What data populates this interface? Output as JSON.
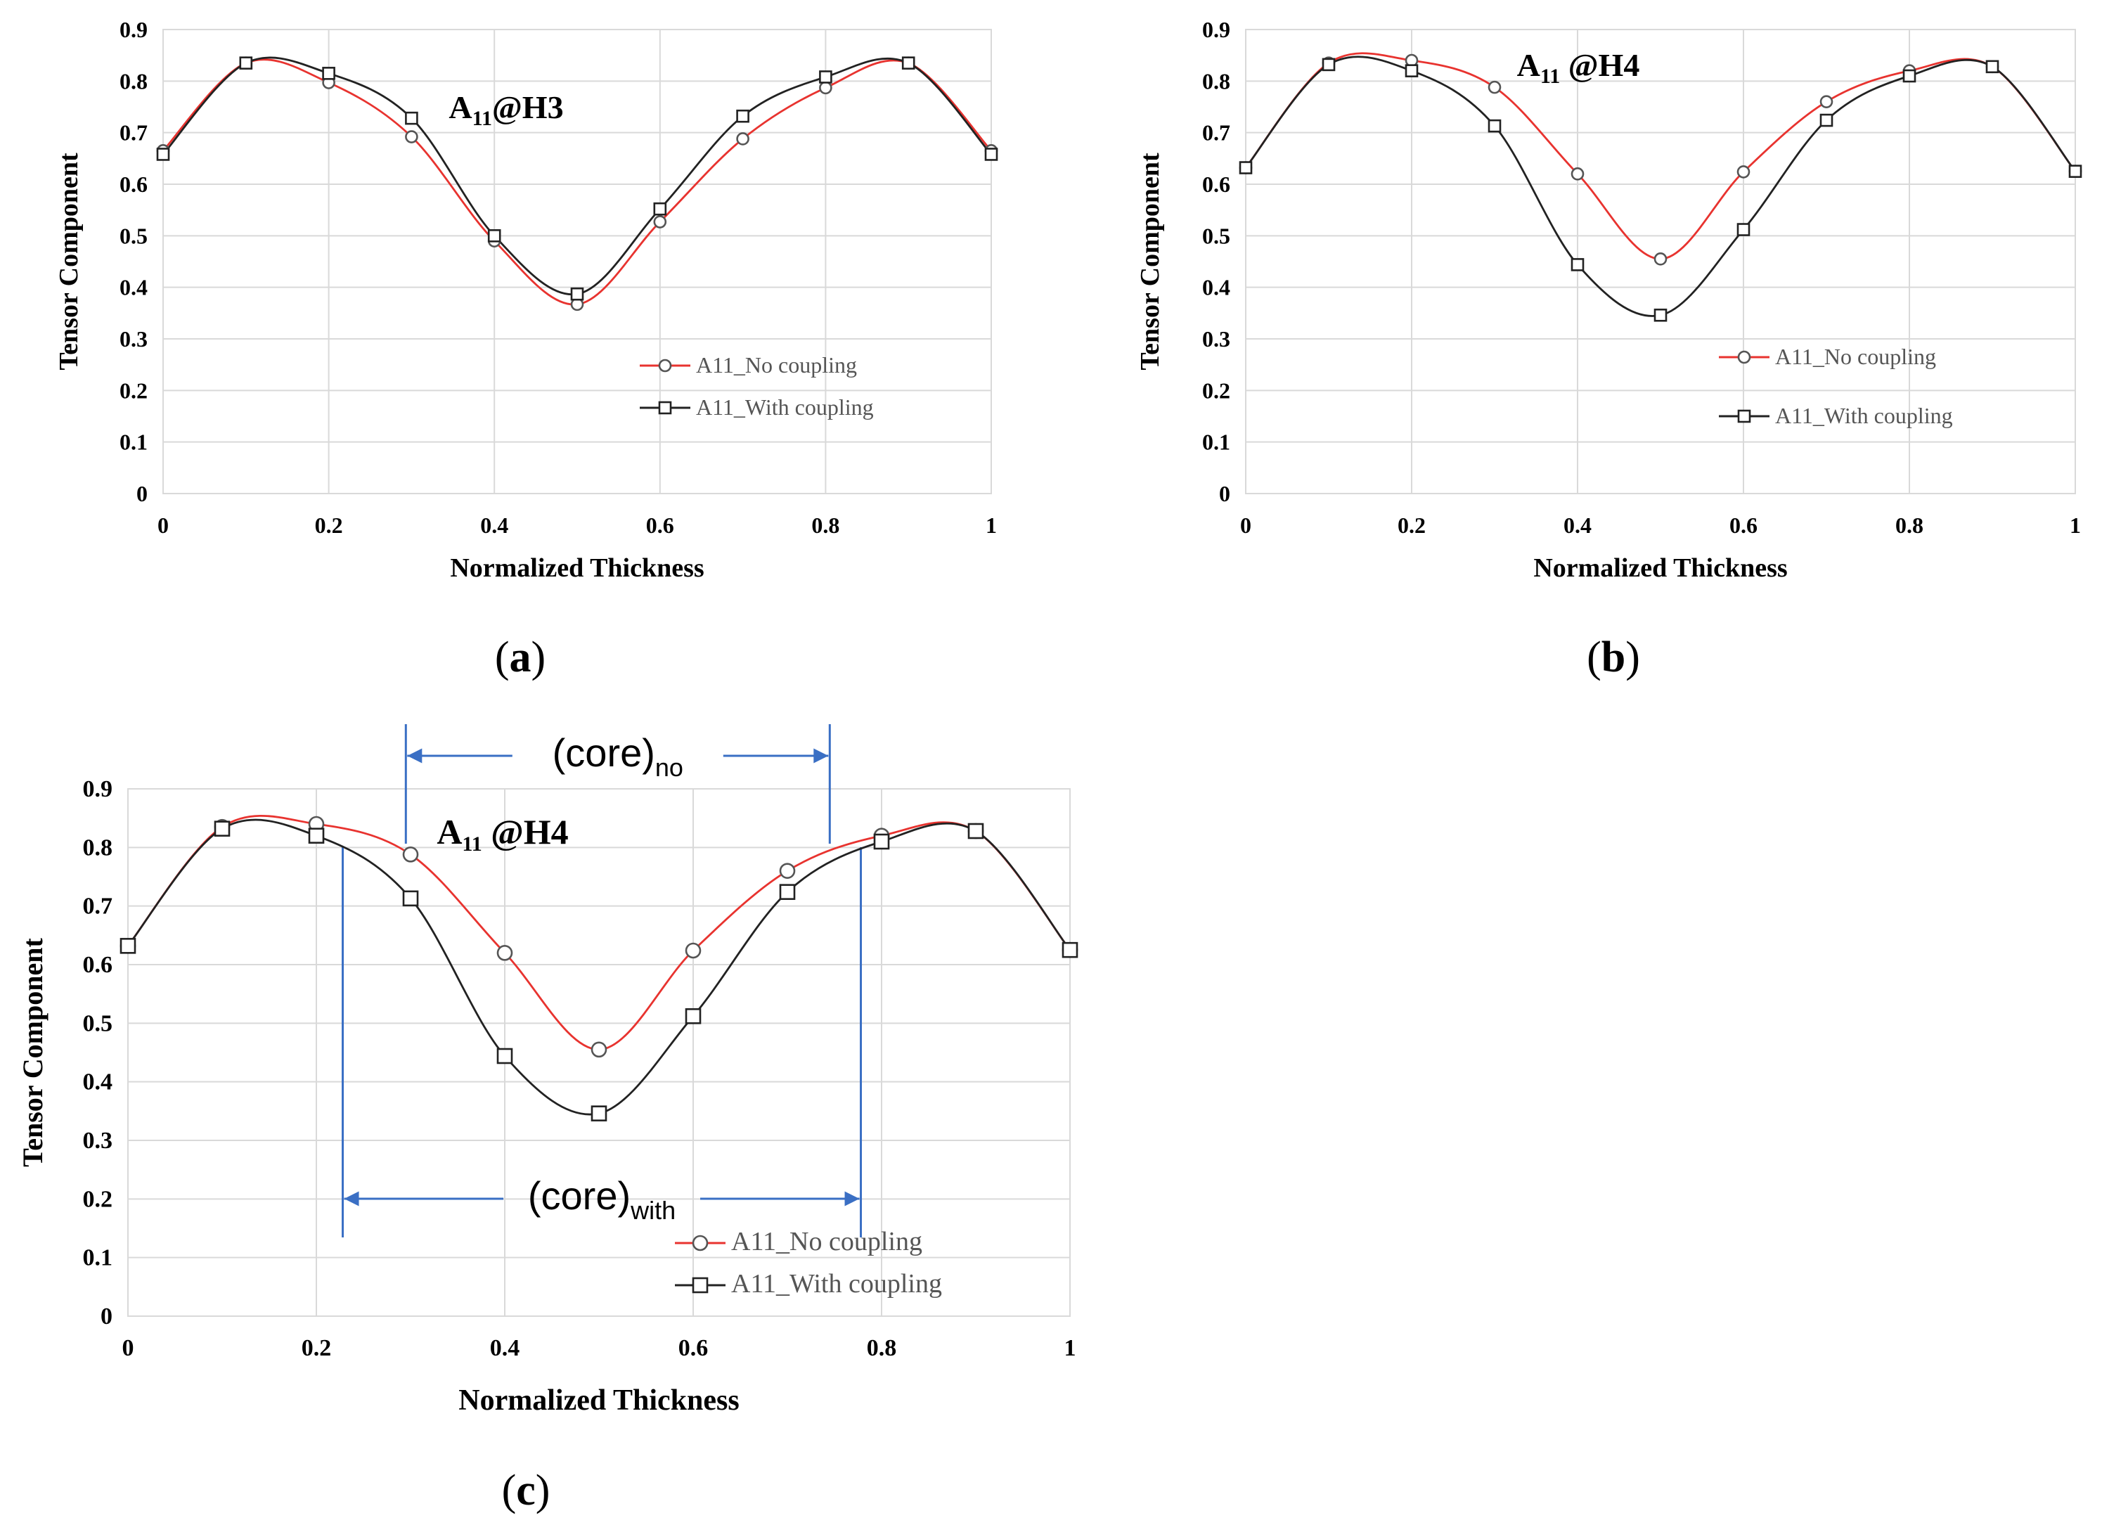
{
  "colors": {
    "no_coupling": "#e8332f",
    "with_coupling": "#222222",
    "grid": "#d9d9d9",
    "annotation": "#3a6fc4"
  },
  "chart_data": [
    {
      "id": "a",
      "type": "line",
      "panel_label": "a",
      "title": {
        "main": "A",
        "sub": "11",
        "rest": "@H3"
      },
      "xlabel": "Normalized  Thickness",
      "ylabel": "Tensor Component",
      "xlim": [
        0,
        1
      ],
      "ylim": [
        0,
        0.9
      ],
      "xticks": [
        "0",
        "0.2",
        "0.4",
        "0.6",
        "0.8",
        "1"
      ],
      "yticks": [
        "0",
        "0.1",
        "0.2",
        "0.3",
        "0.4",
        "0.5",
        "0.6",
        "0.7",
        "0.8",
        "0.9"
      ],
      "x": [
        0,
        0.1,
        0.2,
        0.3,
        0.4,
        0.5,
        0.6,
        0.7,
        0.8,
        0.9,
        1
      ],
      "series": [
        {
          "name": "A11_No coupling",
          "marker": "circle",
          "values": [
            0.665,
            0.835,
            0.797,
            0.692,
            0.49,
            0.367,
            0.527,
            0.688,
            0.787,
            0.835,
            0.665
          ]
        },
        {
          "name": "A11_With coupling",
          "marker": "square",
          "values": [
            0.658,
            0.835,
            0.815,
            0.728,
            0.5,
            0.387,
            0.552,
            0.732,
            0.808,
            0.835,
            0.658
          ]
        }
      ]
    },
    {
      "id": "b",
      "type": "line",
      "panel_label": "b",
      "title": {
        "main": "A",
        "sub": "11",
        "rest": " @H4"
      },
      "xlabel": "Normalized  Thickness",
      "ylabel": "Tensor Component",
      "xlim": [
        0,
        1
      ],
      "ylim": [
        0,
        0.9
      ],
      "xticks": [
        "0",
        "0.2",
        "0.4",
        "0.6",
        "0.8",
        "1"
      ],
      "yticks": [
        "0",
        "0.1",
        "0.2",
        "0.3",
        "0.4",
        "0.5",
        "0.6",
        "0.7",
        "0.8",
        "0.9"
      ],
      "x": [
        0,
        0.1,
        0.2,
        0.3,
        0.4,
        0.5,
        0.6,
        0.7,
        0.8,
        0.9,
        1
      ],
      "series": [
        {
          "name": "A11_No coupling",
          "marker": "circle",
          "values": [
            0.632,
            0.835,
            0.84,
            0.788,
            0.62,
            0.455,
            0.624,
            0.76,
            0.82,
            0.828,
            0.625
          ]
        },
        {
          "name": "A11_With coupling",
          "marker": "square",
          "values": [
            0.632,
            0.832,
            0.82,
            0.713,
            0.444,
            0.346,
            0.512,
            0.724,
            0.81,
            0.828,
            0.625
          ]
        }
      ]
    },
    {
      "id": "c",
      "type": "line",
      "panel_label": "c",
      "title": {
        "main": "A",
        "sub": "11",
        "rest": " @H4"
      },
      "xlabel": "Normalized  Thickness",
      "ylabel": "Tensor Component",
      "xlim": [
        0,
        1
      ],
      "ylim": [
        0,
        0.9
      ],
      "xticks": [
        "0",
        "0.2",
        "0.4",
        "0.6",
        "0.8",
        "1"
      ],
      "yticks": [
        "0",
        "0.1",
        "0.2",
        "0.3",
        "0.4",
        "0.5",
        "0.6",
        "0.7",
        "0.8",
        "0.9"
      ],
      "x": [
        0,
        0.1,
        0.2,
        0.3,
        0.4,
        0.5,
        0.6,
        0.7,
        0.8,
        0.9,
        1
      ],
      "series": [
        {
          "name": "A11_No coupling",
          "marker": "circle",
          "values": [
            0.632,
            0.835,
            0.84,
            0.788,
            0.62,
            0.455,
            0.624,
            0.76,
            0.82,
            0.828,
            0.625
          ]
        },
        {
          "name": "A11_With coupling",
          "marker": "square",
          "values": [
            0.632,
            0.832,
            0.82,
            0.713,
            0.444,
            0.346,
            0.512,
            0.724,
            0.81,
            0.828,
            0.625
          ]
        }
      ],
      "annotations": [
        {
          "label": "core",
          "sub": "no",
          "x_from": 0.295,
          "x_to": 0.745
        },
        {
          "label": "core",
          "sub": "with",
          "x_from": 0.228,
          "x_to": 0.778
        }
      ]
    }
  ]
}
